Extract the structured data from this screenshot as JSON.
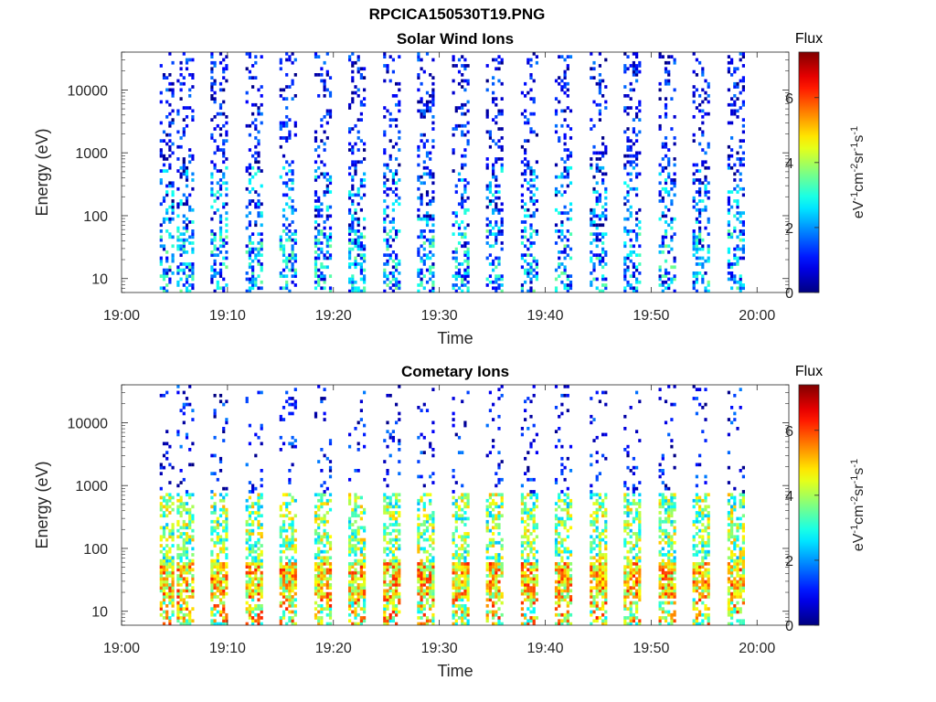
{
  "figure": {
    "title": "RPCICA150530T19.PNG"
  },
  "colormap": "jet",
  "chart_data": [
    {
      "type": "heatmap",
      "title": "Solar Wind Ions",
      "xlabel": "Time",
      "ylabel": "Energy (eV)",
      "x_ticks": [
        "19:00",
        "19:10",
        "19:20",
        "19:30",
        "19:40",
        "19:50",
        "20:00"
      ],
      "x_range_minutes": [
        0,
        63
      ],
      "y_scale": "log",
      "y_ticks": [
        "10",
        "100",
        "1000",
        "10000"
      ],
      "y_range": [
        6,
        40000
      ],
      "colorbar": {
        "title": "Flux",
        "unit_label": "eV-1cm-2sr-1s-1",
        "ticks": [
          "0",
          "2",
          "4",
          "6"
        ],
        "range": [
          0,
          7.4
        ]
      },
      "sweeps_start_minutes": [
        3,
        4.6,
        7.8,
        11.1,
        14.3,
        17.6,
        20.8,
        24.1,
        27.3,
        30.6,
        33.8,
        37.1,
        40.3,
        43.6,
        46.8,
        50.1,
        53.3,
        56.6
      ],
      "approx_dominant_flux": "0-3 (mostly blue/cyan, isolated points)"
    },
    {
      "type": "heatmap",
      "title": "Cometary Ions",
      "xlabel": "Time",
      "ylabel": "Energy (eV)",
      "x_ticks": [
        "19:00",
        "19:10",
        "19:20",
        "19:30",
        "19:40",
        "19:50",
        "20:00"
      ],
      "x_range_minutes": [
        0,
        63
      ],
      "y_scale": "log",
      "y_ticks": [
        "10",
        "100",
        "1000",
        "10000"
      ],
      "y_range": [
        6,
        40000
      ],
      "colorbar": {
        "title": "Flux",
        "unit_label": "eV-1cm-2sr-1s-1",
        "ticks": [
          "0",
          "2",
          "4",
          "6"
        ],
        "range": [
          0,
          7.4
        ]
      },
      "sweeps_start_minutes": [
        3,
        4.6,
        7.8,
        11.1,
        14.3,
        17.6,
        20.8,
        24.1,
        27.3,
        30.6,
        33.8,
        37.1,
        40.3,
        43.6,
        46.8,
        50.1,
        53.3,
        56.6
      ],
      "approx_dominant_flux": "3-6 near 10-100 eV (yellow/orange), scattered blue above 1000 eV"
    }
  ]
}
